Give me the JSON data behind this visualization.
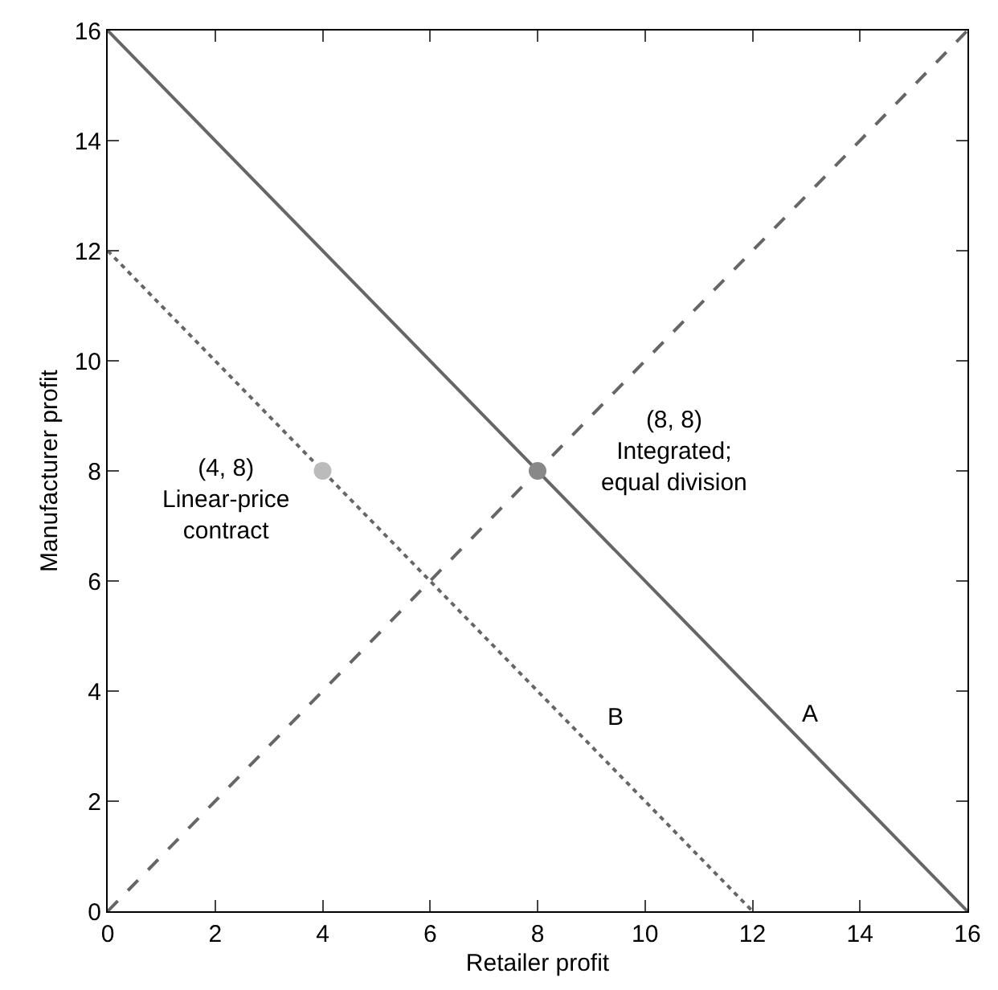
{
  "chart_data": {
    "type": "line",
    "xlabel": "Retailer profit",
    "ylabel": "Manufacturer profit",
    "xlim": [
      0,
      16
    ],
    "xticks": [
      0,
      2,
      4,
      6,
      8,
      10,
      12,
      14,
      16
    ],
    "ylim": [
      0,
      16
    ],
    "yticks": [
      0,
      2,
      4,
      6,
      8,
      10,
      12,
      14,
      16
    ],
    "series": [
      {
        "x": [
          0,
          16
        ],
        "values": [
          16,
          0
        ],
        "color": "#666666",
        "line_style": "solid"
      },
      {
        "x": [
          0,
          16
        ],
        "values": [
          0,
          16
        ],
        "color": "#666666",
        "line_style": "dashed"
      },
      {
        "x": [
          0,
          12
        ],
        "values": [
          12,
          0
        ],
        "color": "#666666",
        "line_style": "dotted"
      },
      {
        "type": "scatter",
        "x": [
          4
        ],
        "values": [
          8
        ],
        "color": "#bbbbbb",
        "marker": "circle"
      },
      {
        "type": "scatter",
        "x": [
          8
        ],
        "values": [
          8
        ],
        "color": "#888888",
        "marker": "circle"
      }
    ],
    "annotations": [
      {
        "text": "(4, 8)\nLinear-price\ncontract",
        "x": 4,
        "y": 8
      },
      {
        "text": "(8, 8)\nIntegrated;\nequal division",
        "x": 8,
        "y": 8
      },
      "B",
      "A"
    ]
  }
}
